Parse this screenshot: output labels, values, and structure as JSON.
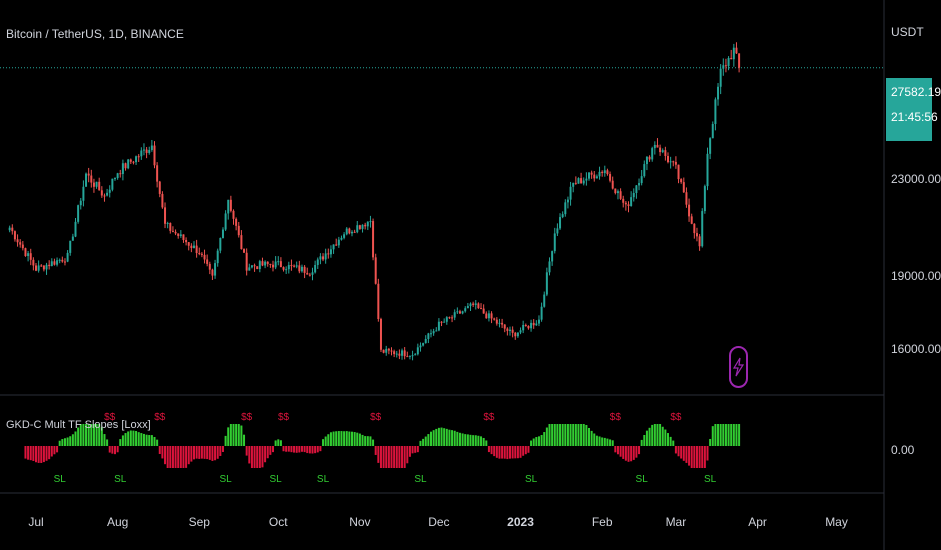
{
  "header": {
    "symbol": "Bitcoin / TetherUS, 1D, BINANCE",
    "currency": "USDT"
  },
  "indicator": {
    "title": "GKD-C Mult TF Slopes [Loxx]",
    "buy_marker": "$$",
    "sell_marker": "SL"
  },
  "last_price": {
    "value": "27582.19",
    "countdown": "21:45:56"
  },
  "colors": {
    "up": "#26a69a",
    "down": "#ef5350",
    "green_hist": "#32cd32",
    "red_hist": "#dc143c",
    "accent": "#9c27b0"
  },
  "icons": [
    "lightning-icon"
  ],
  "chart_data": {
    "type": "candlestick",
    "y_tick_labels": [
      "23000.00",
      "19000.00",
      "16000.00"
    ],
    "y_ticks": [
      23000,
      19000,
      16000
    ],
    "x_tick_labels": [
      "Jul",
      "Aug",
      "Sep",
      "Oct",
      "Nov",
      "Dec",
      "2023",
      "Feb",
      "Mar",
      "Apr",
      "May"
    ],
    "close_path": [
      {
        "date": "2022-06-21",
        "close": 21000
      },
      {
        "date": "2022-07-01",
        "close": 19300
      },
      {
        "date": "2022-07-13",
        "close": 19800
      },
      {
        "date": "2022-07-20",
        "close": 23200
      },
      {
        "date": "2022-07-27",
        "close": 22300
      },
      {
        "date": "2022-08-01",
        "close": 23300
      },
      {
        "date": "2022-08-14",
        "close": 24400
      },
      {
        "date": "2022-08-19",
        "close": 21100
      },
      {
        "date": "2022-09-01",
        "close": 20000
      },
      {
        "date": "2022-09-06",
        "close": 18900
      },
      {
        "date": "2022-09-12",
        "close": 22200
      },
      {
        "date": "2022-09-19",
        "close": 19400
      },
      {
        "date": "2022-09-30",
        "close": 19500
      },
      {
        "date": "2022-10-13",
        "close": 19200
      },
      {
        "date": "2022-10-26",
        "close": 20800
      },
      {
        "date": "2022-11-05",
        "close": 21300
      },
      {
        "date": "2022-11-09",
        "close": 15900
      },
      {
        "date": "2022-11-21",
        "close": 15800
      },
      {
        "date": "2022-12-01",
        "close": 17000
      },
      {
        "date": "2022-12-14",
        "close": 17800
      },
      {
        "date": "2022-12-29",
        "close": 16600
      },
      {
        "date": "2023-01-08",
        "close": 17200
      },
      {
        "date": "2023-01-14",
        "close": 20800
      },
      {
        "date": "2023-01-21",
        "close": 22800
      },
      {
        "date": "2023-02-02",
        "close": 23400
      },
      {
        "date": "2023-02-10",
        "close": 21800
      },
      {
        "date": "2023-02-21",
        "close": 24500
      },
      {
        "date": "2023-03-01",
        "close": 23400
      },
      {
        "date": "2023-03-10",
        "close": 20200
      },
      {
        "date": "2023-03-13",
        "close": 24100
      },
      {
        "date": "2023-03-18",
        "close": 27400
      },
      {
        "date": "2023-03-23",
        "close": 28300
      },
      {
        "date": "2023-03-25",
        "close": 27582.19
      }
    ],
    "last_value": 27582.19,
    "indicator_zero_label": "0.00"
  }
}
